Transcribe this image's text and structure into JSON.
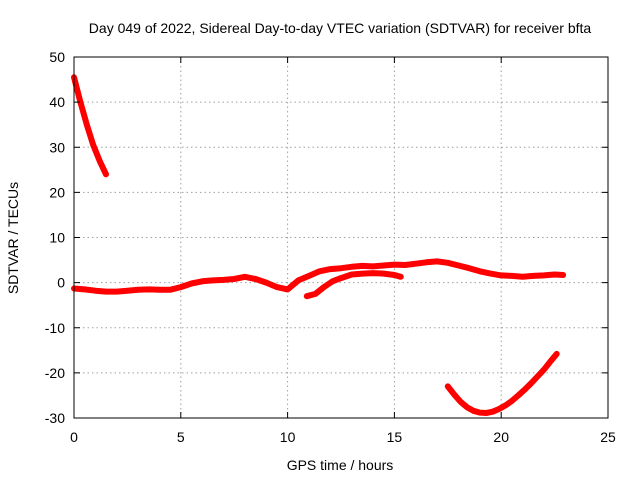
{
  "chart_data": {
    "type": "line",
    "title": "Day 049 of 2022, Sidereal Day-to-day VTEC variation (SDTVAR) for receiver bfta",
    "xlabel": "GPS time / hours",
    "ylabel": "SDTVAR / TECUs",
    "xlim": [
      0,
      25
    ],
    "ylim": [
      -30,
      50
    ],
    "xticks": [
      0,
      5,
      10,
      15,
      20,
      25
    ],
    "yticks": [
      -30,
      -20,
      -10,
      0,
      10,
      20,
      30,
      40,
      50
    ],
    "xtick_labels": [
      "0",
      "5",
      "10",
      "15",
      "20",
      "25"
    ],
    "ytick_labels": [
      "-30",
      "-20",
      "-10",
      "0",
      "10",
      "20",
      "30",
      "40",
      "50"
    ],
    "grid": true,
    "color": "#ff0000",
    "series": [
      {
        "name": "descending-early",
        "x": [
          0.0,
          0.3,
          0.6,
          0.9,
          1.2,
          1.5
        ],
        "y": [
          45.5,
          40.0,
          35.0,
          30.5,
          27.0,
          24.0
        ]
      },
      {
        "name": "main-arc",
        "x": [
          0.0,
          0.5,
          1.0,
          1.5,
          2.0,
          2.5,
          3.0,
          3.5,
          4.0,
          4.5,
          5.0,
          5.5,
          6.0,
          6.5,
          7.0,
          7.5,
          8.0,
          8.5,
          9.0,
          9.5,
          10.0,
          10.5,
          11.0,
          11.5,
          12.0,
          12.5,
          13.0,
          13.5,
          14.0,
          14.5,
          15.0,
          15.5,
          16.0,
          16.5,
          17.0,
          17.5,
          18.0,
          18.5,
          19.0,
          19.5,
          20.0,
          20.5,
          21.0,
          21.5,
          22.0,
          22.5,
          22.9
        ],
        "y": [
          -1.3,
          -1.5,
          -1.8,
          -2.0,
          -2.0,
          -1.8,
          -1.6,
          -1.5,
          -1.6,
          -1.6,
          -1.0,
          -0.2,
          0.3,
          0.5,
          0.6,
          0.8,
          1.3,
          0.8,
          0.0,
          -1.0,
          -1.5,
          0.5,
          1.5,
          2.5,
          3.0,
          3.2,
          3.5,
          3.7,
          3.6,
          3.8,
          4.0,
          3.9,
          4.2,
          4.5,
          4.7,
          4.4,
          3.8,
          3.2,
          2.5,
          2.0,
          1.6,
          1.5,
          1.3,
          1.5,
          1.6,
          1.8,
          1.7
        ]
      },
      {
        "name": "secondary-arc",
        "x": [
          10.9,
          11.3,
          11.7,
          12.1,
          12.5,
          13.0,
          13.5,
          14.0,
          14.5,
          15.0,
          15.3
        ],
        "y": [
          -3.0,
          -2.5,
          -1.0,
          0.3,
          1.0,
          1.8,
          2.0,
          2.1,
          2.0,
          1.7,
          1.3
        ]
      },
      {
        "name": "negative-trough",
        "x": [
          17.5,
          17.8,
          18.1,
          18.4,
          18.7,
          19.0,
          19.3,
          19.6,
          19.9,
          20.2,
          20.5,
          20.8,
          21.1,
          21.4,
          21.7,
          22.0,
          22.3,
          22.6
        ],
        "y": [
          -23.0,
          -24.8,
          -26.4,
          -27.6,
          -28.4,
          -28.8,
          -28.9,
          -28.6,
          -28.0,
          -27.2,
          -26.2,
          -25.0,
          -23.7,
          -22.3,
          -20.8,
          -19.3,
          -17.5,
          -15.8
        ]
      }
    ]
  }
}
